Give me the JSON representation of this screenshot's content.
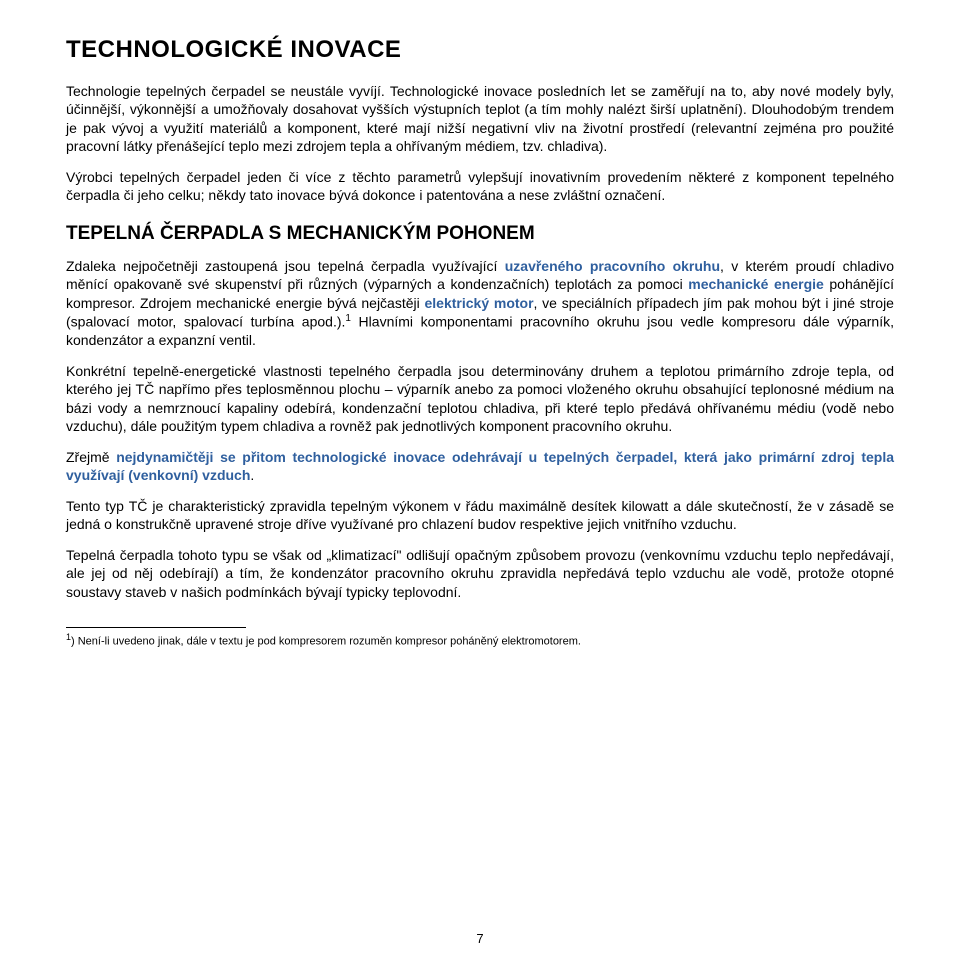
{
  "colors": {
    "text": "#000000",
    "accent_blue": "#2f5f9e",
    "background": "#ffffff"
  },
  "typography": {
    "title_fontsize": 24,
    "section_fontsize": 19,
    "body_fontsize": 14,
    "footnote_fontsize": 11,
    "font_family": "Arial"
  },
  "title": "TECHNOLOGICKÉ INOVACE",
  "p1": "Technologie tepelných čerpadel se neustále vyvíjí. Technologické inovace posledních let se zaměřují na to, aby nové modely byly, účinnější, výkonnější a umožňovaly dosahovat vyšších výstupních teplot (a tím mohly nalézt širší uplatnění). Dlouhodobým trendem je pak vývoj a využití materiálů a komponent, které mají nižší negativní vliv na životní prostředí (relevantní zejména pro použité pracovní látky přenášející teplo mezi zdrojem tepla a ohřívaným médiem, tzv. chladiva).",
  "p2": "Výrobci tepelných čerpadel jeden či více z těchto parametrů vylepšují inovativním provedením některé z komponent tepelného čerpadla či jeho celku; někdy tato inovace bývá dokonce i patentována a nese zvláštní označení.",
  "section1": "TEPELNÁ ČERPADLA S MECHANICKÝM POHONEM",
  "p3_a": "Zdaleka nejpočetněji zastoupená jsou tepelná čerpadla využívající ",
  "p3_blue1": "uzavřeného pracovního okruhu",
  "p3_b": ", v kterém proudí chladivo měnící opakovaně své skupenství při různých (výparných a kondenzačních) teplotách za pomoci ",
  "p3_blue2": "mechanické energie",
  "p3_c": " pohánějící kompresor. Zdrojem mechanické energie bývá nejčastěji ",
  "p3_blue3": "elektrický motor",
  "p3_d": ", ve speciálních případech jím pak mohou být i jiné stroje (spalovací motor, spalovací turbína apod.).",
  "p3_sup": "1",
  "p3_e": " Hlavními komponentami pracovního okruhu jsou vedle kompresoru dále výparník, kondenzátor a expanzní ventil.",
  "p4": "Konkrétní tepelně-energetické vlastnosti tepelného čerpadla jsou determinovány druhem a teplotou primárního zdroje tepla, od kterého jej TČ napřímo přes teplosměnnou plochu – výparník anebo za pomoci vloženého okruhu obsahující teplonosné médium na bázi vody a nemrznoucí kapaliny odebírá, kondenzační teplotou chladiva, při které teplo předává ohřívanému médiu (vodě nebo vzduchu), dále použitým typem chladiva a rovněž pak jednotlivých komponent pracovního okruhu.",
  "p5_a": "Zřejmě ",
  "p5_blue": "nejdynamičtěji se přitom technologické inovace odehrávají u tepelných čerpadel, která jako primární zdroj tepla využívají (venkovní) vzduch",
  "p5_b": ".",
  "p6": "Tento typ TČ je charakteristický zpravidla tepelným výkonem v řádu maximálně desítek kilowatt a dále skutečností, že v zásadě se jedná o konstrukčně upravené stroje dříve využívané pro chlazení budov respektive jejich vnitřního vzduchu.",
  "p7": "Tepelná čerpadla tohoto typu se však od „klimatizací\" odlišují opačným způsobem provozu (venkovnímu vzduchu teplo nepředávají, ale jej od něj odebírají) a tím, že kondenzátor pracovního okruhu zpravidla nepředává teplo vzduchu ale vodě, protože otopné soustavy staveb v našich podmínkách bývají typicky teplovodní.",
  "footnote_sup": "1",
  "footnote": ") Není-li uvedeno jinak, dále v textu je pod kompresorem rozuměn kompresor poháněný elektromotorem.",
  "page_number": "7"
}
